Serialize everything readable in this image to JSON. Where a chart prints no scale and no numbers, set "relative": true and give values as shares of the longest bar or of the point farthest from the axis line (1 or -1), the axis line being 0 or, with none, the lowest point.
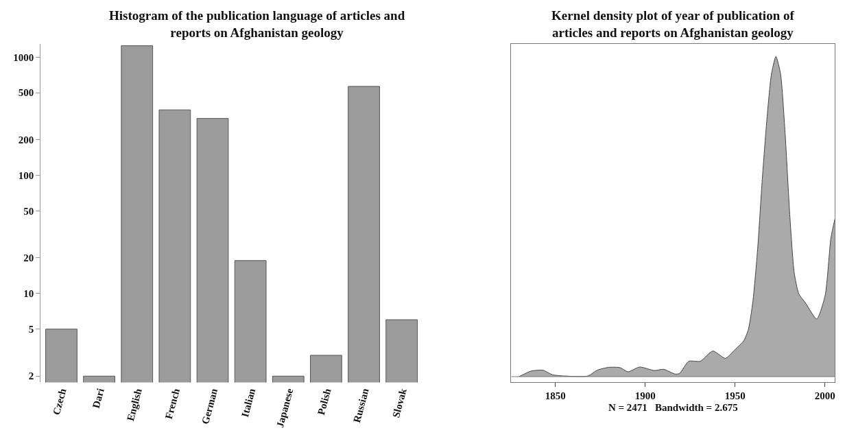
{
  "chart_data": [
    {
      "type": "bar",
      "title": "Histogram of the publication language of articles and\nreports on Afghanistan geology",
      "categories": [
        "Czech",
        "Dari",
        "English",
        "French",
        "German",
        "Italian",
        "Japanese",
        "Polish",
        "Russian",
        "Slovak"
      ],
      "values": [
        5,
        2,
        1250,
        358,
        303,
        19,
        2,
        3,
        566,
        6
      ],
      "color": "#9b9b9b",
      "log": true,
      "ylim": [
        1.77,
        1300
      ],
      "yticks": [
        2,
        5,
        10,
        20,
        50,
        100,
        200,
        500,
        1000
      ]
    },
    {
      "type": "area",
      "title": "Kernel density plot of year of publication of\narticles and reports on Afghanistan geology",
      "xlabel": "N = 2471   Bandwidth = 2.675",
      "relative": true,
      "color": "#aaaaaa",
      "x": [
        1829.8,
        1836.2,
        1840.1,
        1843.2,
        1848.3,
        1854.7,
        1868.1,
        1873.2,
        1879.6,
        1886.0,
        1890.4,
        1896.8,
        1905.1,
        1910.2,
        1916.6,
        1919.1,
        1924.2,
        1930.6,
        1937.6,
        1944.6,
        1949.7,
        1954.8,
        1957.4,
        1959.9,
        1962.5,
        1965.1,
        1967.6,
        1970.2,
        1972.7,
        1975.3,
        1977.8,
        1980.4,
        1982.9,
        1985.5,
        1989.3,
        1995.4,
        2000.1,
        2003.3,
        2005.5
      ],
      "values": [
        0,
        0.017,
        0.02,
        0.02,
        0.006,
        0.002,
        0.002,
        0.02,
        0.029,
        0.028,
        0.015,
        0.03,
        0.019,
        0.023,
        0.008,
        0.01,
        0.048,
        0.048,
        0.08,
        0.057,
        0.083,
        0.112,
        0.148,
        0.236,
        0.397,
        0.616,
        0.799,
        0.945,
        1.0,
        0.945,
        0.762,
        0.507,
        0.324,
        0.258,
        0.229,
        0.18,
        0.254,
        0.433,
        0.492
      ],
      "xlim": [
        1825.4,
        2005.5
      ],
      "xticks": [
        1850,
        1900,
        1950,
        2000
      ]
    }
  ]
}
